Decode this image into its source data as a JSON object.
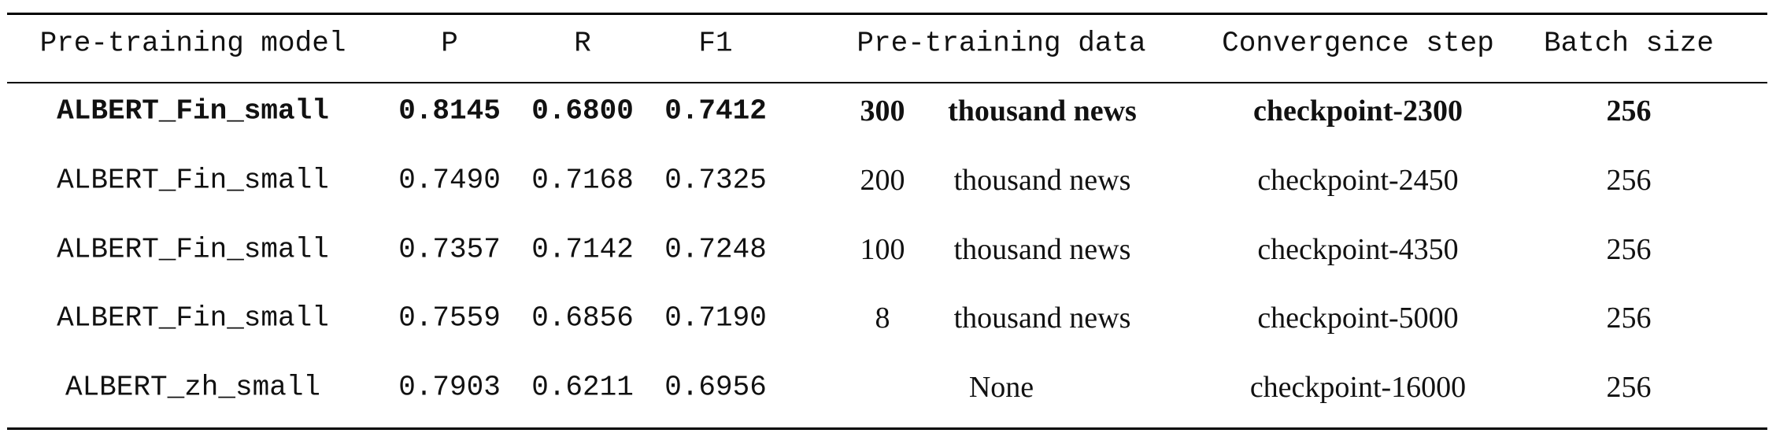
{
  "table": {
    "header": [
      "Pre-training model",
      "P",
      "R",
      "F1",
      "Pre-training data",
      "Convergence step",
      "Batch size"
    ],
    "rows": [
      {
        "model": "ALBERT_Fin_small",
        "p": "0.8145",
        "r": "0.6800",
        "f1": "0.7412",
        "data": {
          "amount": "300",
          "unit": "thousand news"
        },
        "step": "checkpoint-2300",
        "batch": "256",
        "bold": true
      },
      {
        "model": "ALBERT_Fin_small",
        "p": "0.7490",
        "r": "0.7168",
        "f1": "0.7325",
        "data": {
          "amount": "200",
          "unit": "thousand news"
        },
        "step": "checkpoint-2450",
        "batch": "256"
      },
      {
        "model": "ALBERT_Fin_small",
        "p": "0.7357",
        "r": "0.7142",
        "f1": "0.7248",
        "data": {
          "amount": "100",
          "unit": "thousand news"
        },
        "step": "checkpoint-4350",
        "batch": "256"
      },
      {
        "model": "ALBERT_Fin_small",
        "p": "0.7559",
        "r": "0.6856",
        "f1": "0.7190",
        "data": {
          "amount": "8",
          "unit": "thousand news"
        },
        "step": "checkpoint-5000",
        "batch": "256"
      },
      {
        "model": "ALBERT_zh_small",
        "p": "0.7903",
        "r": "0.6211",
        "f1": "0.6956",
        "data": "None",
        "step": "checkpoint-16000",
        "batch": "256"
      }
    ]
  }
}
